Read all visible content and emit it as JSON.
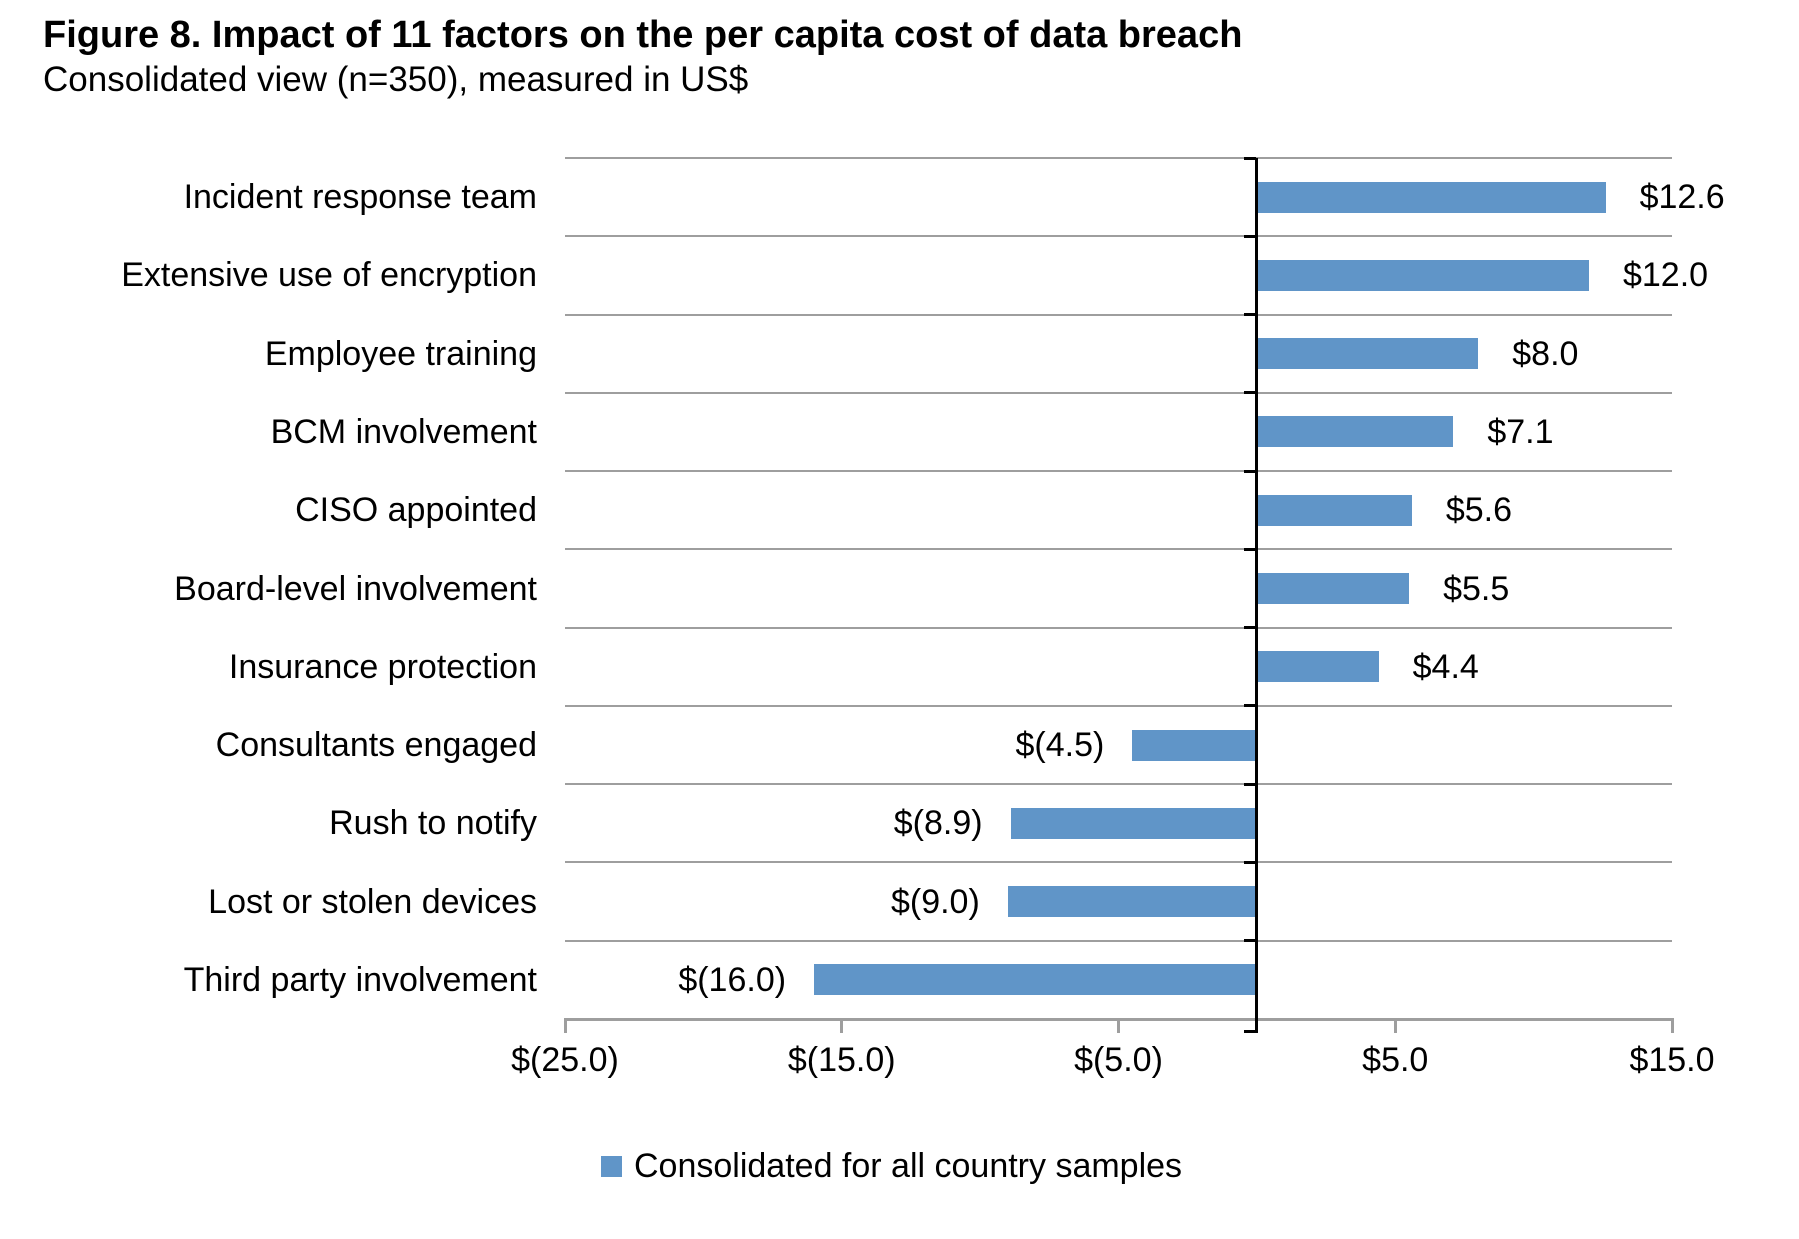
{
  "figure": {
    "title": "Figure 8. Impact of 11 factors on the per capita cost of data breach",
    "subtitle": "Consolidated view (n=350), measured in US$"
  },
  "legend": {
    "label": "Consolidated for all country samples"
  },
  "colors": {
    "bar": "#6095C8",
    "gridline": "#9E9E9E",
    "axis_line": "#9E9E9E",
    "zero_line": "#000000",
    "text": "#000000"
  },
  "chart_data": {
    "type": "bar",
    "orientation": "horizontal",
    "title": "Figure 8. Impact of 11 factors on the per capita cost of data breach",
    "subtitle": "Consolidated view (n=350), measured in US$",
    "categories": [
      "Incident response team",
      "Extensive use of encryption",
      "Employee training",
      "BCM involvement",
      "CISO appointed",
      "Board-level involvement",
      "Insurance protection",
      "Consultants engaged",
      "Rush to notify",
      "Lost or stolen devices",
      "Third party involvement"
    ],
    "values": [
      12.6,
      12.0,
      8.0,
      7.1,
      5.6,
      5.5,
      4.4,
      -4.5,
      -8.9,
      -9.0,
      -16.0
    ],
    "value_labels": [
      "$12.6",
      "$12.0",
      "$8.0",
      "$7.1",
      "$5.6",
      "$5.5",
      "$4.4",
      "$(4.5)",
      "$(8.9)",
      "$(9.0)",
      "$(16.0)"
    ],
    "xlabel": "",
    "ylabel": "",
    "x_axis": {
      "range": [
        -25,
        15
      ],
      "ticks": [
        -25,
        -15,
        -5,
        5,
        15
      ],
      "tick_labels": [
        "$(25.0)",
        "$(15.0)",
        "$(5.0)",
        "$5.0",
        "$15.0"
      ]
    },
    "grid": true,
    "legend_position": "bottom",
    "series": [
      {
        "name": "Consolidated for all country samples",
        "values": [
          12.6,
          12.0,
          8.0,
          7.1,
          5.6,
          5.5,
          4.4,
          -4.5,
          -8.9,
          -9.0,
          -16.0
        ]
      }
    ]
  }
}
